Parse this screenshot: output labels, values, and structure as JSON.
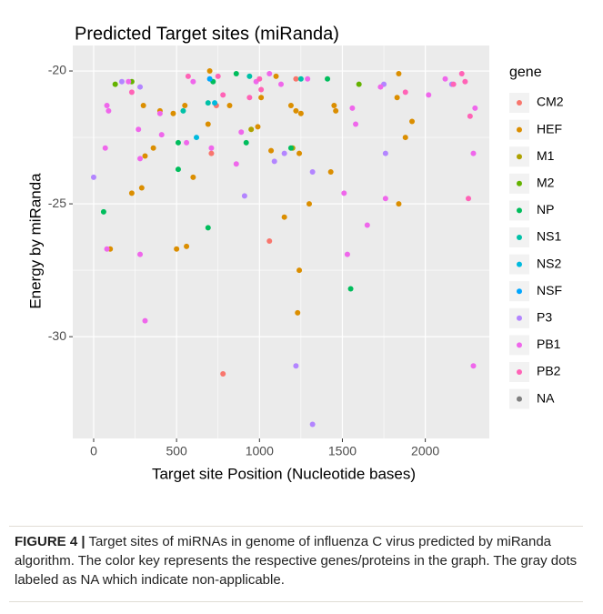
{
  "chart_data": {
    "type": "scatter",
    "title": "Predicted Target sites (miRanda)",
    "xlabel": "Target site Position (Nucleotide bases)",
    "ylabel": "Energy by miRanda",
    "legend_title": "gene",
    "xlim": [
      -126,
      2386
    ],
    "xticks": [
      0,
      500,
      1000,
      1500,
      2000
    ],
    "ylim": [
      -33.83,
      -19.04
    ],
    "yticks": [
      -20,
      -25,
      -30
    ],
    "grid": true,
    "series": [
      {
        "name": "CM2",
        "color": "#F8766D",
        "x": [
          780,
          1060,
          740,
          710,
          1220
        ],
        "values": [
          -31.4,
          -26.4,
          -21.3,
          -23.1,
          -20.3
        ]
      },
      {
        "name": "HEF",
        "color": "#DB8E00",
        "x": [
          500,
          560,
          600,
          290,
          230,
          700,
          690,
          820,
          990,
          1010,
          1070,
          1150,
          1240,
          1230,
          1300,
          1430,
          1450,
          1460,
          1830,
          1840,
          1880,
          1920,
          1840,
          100,
          300,
          310,
          360,
          400,
          480,
          1190,
          1220,
          1250,
          1240,
          1100,
          550
        ],
        "values": [
          -26.7,
          -26.6,
          -24.0,
          -24.4,
          -24.6,
          -20.0,
          -22.0,
          -21.3,
          -22.1,
          -21.0,
          -23.0,
          -25.5,
          -27.5,
          -29.1,
          -25.0,
          -23.8,
          -21.3,
          -21.5,
          -21.0,
          -20.1,
          -22.5,
          -21.9,
          -25.0,
          -26.7,
          -21.3,
          -23.2,
          -22.9,
          -21.5,
          -21.6,
          -21.3,
          -21.5,
          -21.6,
          -23.1,
          -20.2,
          -21.3
        ]
      },
      {
        "name": "M1",
        "color": "#AEA200",
        "x": [
          1200,
          950
        ],
        "values": [
          -22.9,
          -22.2
        ]
      },
      {
        "name": "M2",
        "color": "#64B200",
        "x": [
          130,
          230,
          1600
        ],
        "values": [
          -20.5,
          -20.4,
          -20.5
        ]
      },
      {
        "name": "NP",
        "color": "#00BD5C",
        "x": [
          60,
          510,
          510,
          690,
          860,
          920,
          1550,
          1190,
          720,
          1410
        ],
        "values": [
          -25.3,
          -23.7,
          -22.7,
          -25.9,
          -20.1,
          -22.7,
          -28.2,
          -22.9,
          -20.4,
          -20.3
        ]
      },
      {
        "name": "NS1",
        "color": "#00C1A7",
        "x": [
          540,
          690,
          940,
          1250
        ],
        "values": [
          -21.5,
          -21.2,
          -20.2,
          -20.3
        ]
      },
      {
        "name": "NS2",
        "color": "#00BADE",
        "x": [
          620,
          730
        ],
        "values": [
          -22.5,
          -21.2
        ]
      },
      {
        "name": "NSF",
        "color": "#00A6FF",
        "x": [
          700
        ],
        "values": [
          -20.3
        ]
      },
      {
        "name": "P3",
        "color": "#B385FF",
        "x": [
          0,
          170,
          280,
          910,
          1090,
          1150,
          1220,
          1320,
          1320,
          1760,
          1750,
          2160
        ],
        "values": [
          -24.0,
          -20.4,
          -20.6,
          -24.7,
          -23.4,
          -23.1,
          -31.1,
          -33.3,
          -23.8,
          -23.1,
          -20.5,
          -20.5
        ]
      },
      {
        "name": "PB1",
        "color": "#EF67EB",
        "x": [
          80,
          90,
          70,
          210,
          270,
          280,
          280,
          310,
          410,
          560,
          600,
          710,
          860,
          890,
          980,
          1060,
          1130,
          1290,
          1510,
          1530,
          1650,
          1730,
          1760,
          1580,
          1560,
          2020,
          2120,
          2290,
          2290,
          2300,
          80,
          400
        ],
        "values": [
          -21.3,
          -21.5,
          -22.9,
          -20.4,
          -22.2,
          -23.3,
          -26.9,
          -29.4,
          -22.4,
          -22.7,
          -20.4,
          -22.9,
          -23.5,
          -22.3,
          -20.4,
          -20.1,
          -20.5,
          -20.3,
          -24.6,
          -26.9,
          -25.8,
          -20.6,
          -24.8,
          -22.0,
          -21.4,
          -20.9,
          -20.3,
          -23.1,
          -31.1,
          -21.4,
          -26.7,
          -21.6
        ]
      },
      {
        "name": "PB2",
        "color": "#FF63B6",
        "x": [
          230,
          570,
          780,
          940,
          1010,
          1880,
          2170,
          2220,
          2240,
          2260,
          2270,
          1000,
          750
        ],
        "values": [
          -20.8,
          -20.2,
          -20.9,
          -21.0,
          -20.7,
          -20.8,
          -20.5,
          -20.1,
          -20.4,
          -24.8,
          -21.7,
          -20.3,
          -20.2
        ]
      },
      {
        "name": "NA",
        "color": "#7F7F7F",
        "x": [],
        "values": []
      }
    ]
  },
  "caption": {
    "label": "FIGURE 4 |",
    "text": "Target sites of miRNAs in genome of influenza C virus predicted by miRanda algorithm. The color key represents the respective genes/proteins in the graph. The gray dots labeled as NA which indicate non-applicable."
  }
}
